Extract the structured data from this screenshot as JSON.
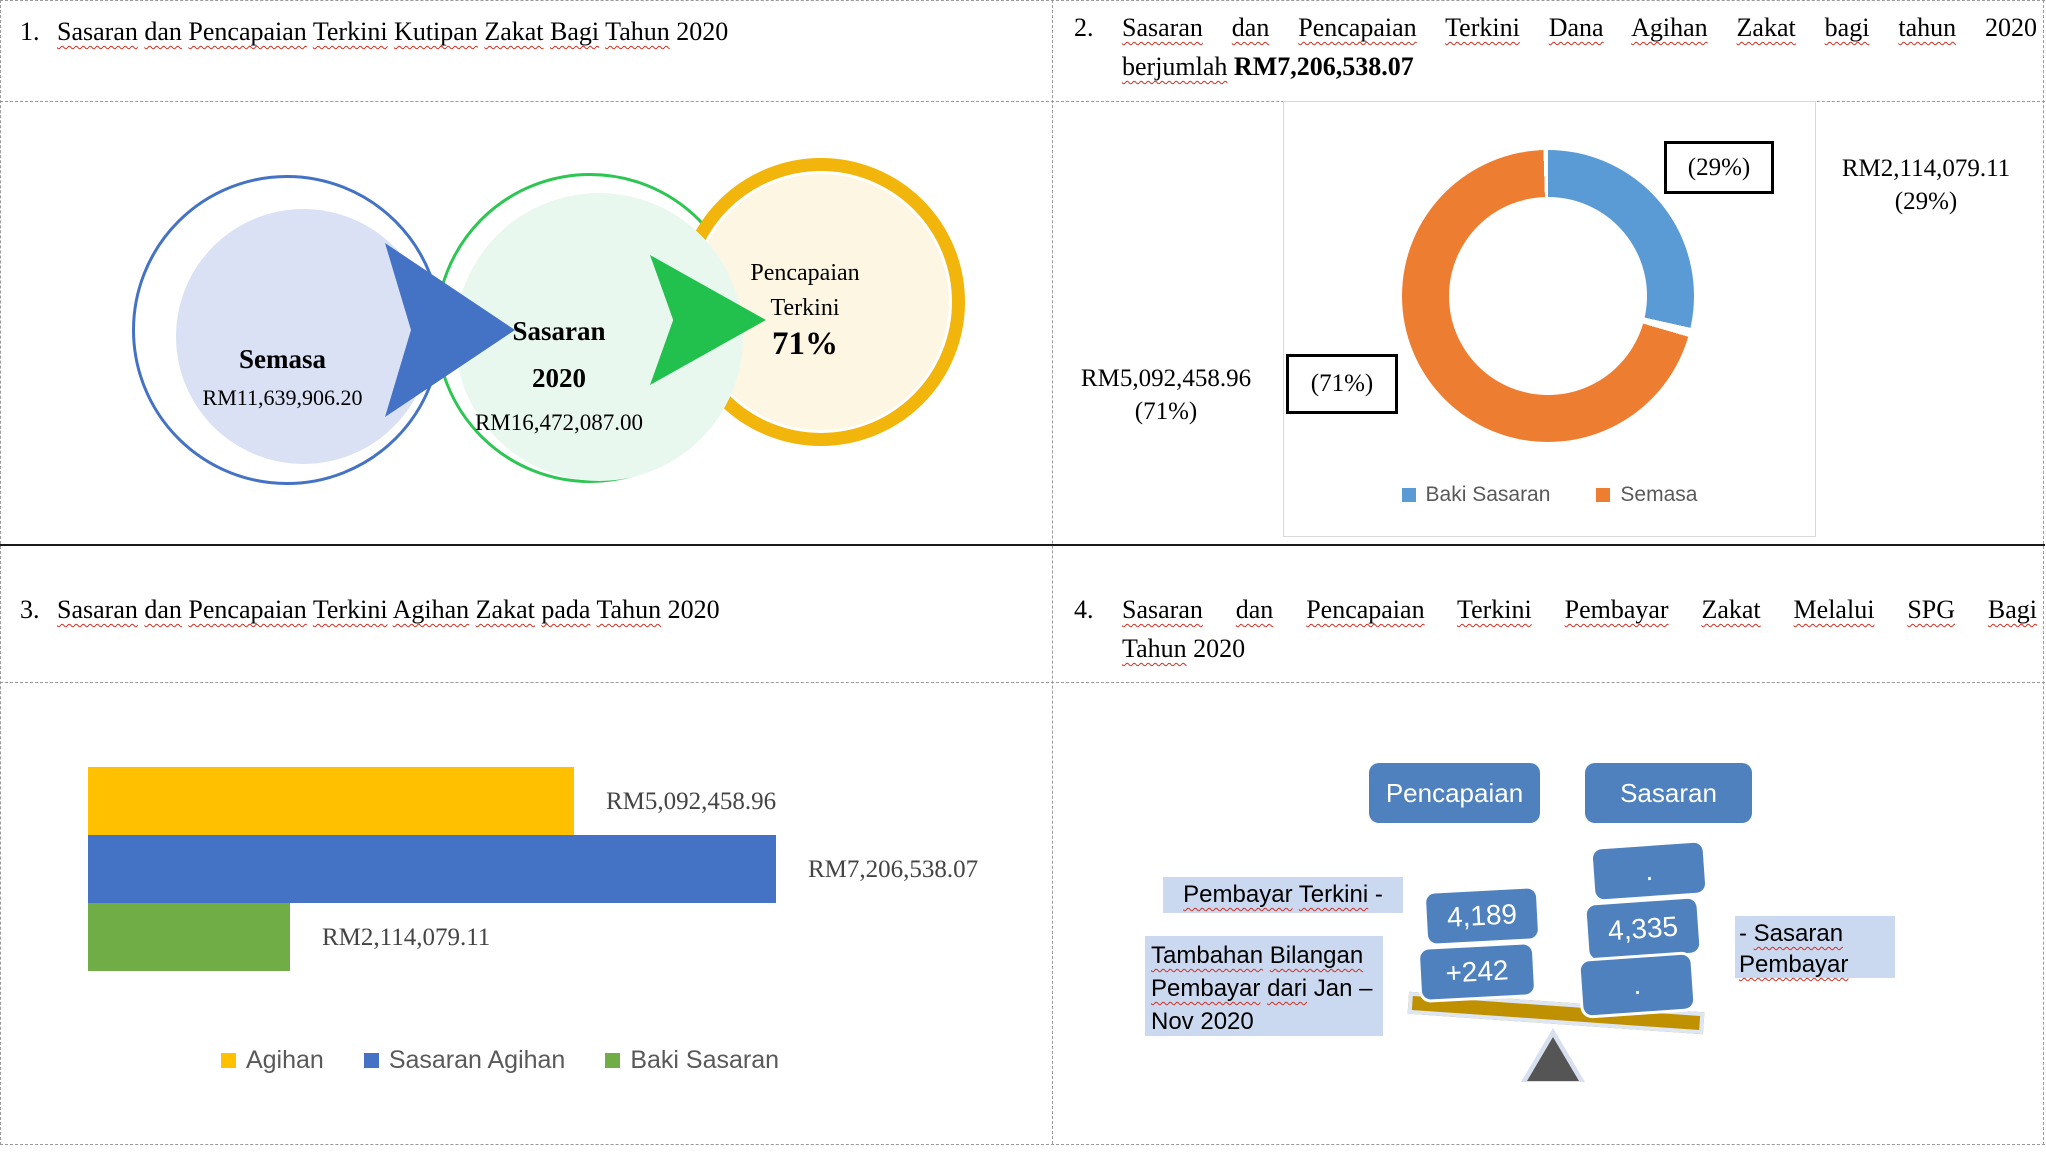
{
  "q1": {
    "number": "1.",
    "title": "Sasaran dan Pencapaian Terkini Kutipan Zakat Bagi Tahun 2020"
  },
  "q2": {
    "number": "2.",
    "title_line1": "Sasaran dan Pencapaian Terkini Dana Agihan Zakat bagi tahun 2020",
    "line2_pre": "berjumlah",
    "line2_bold": "RM7,206,538.07"
  },
  "q3": {
    "number": "3.",
    "title": "Sasaran dan Pencapaian Terkini Agihan Zakat pada Tahun 2020"
  },
  "q4": {
    "number": "4.",
    "title_line1": "Sasaran dan Pencapaian Terkini Pembayar Zakat Melalui SPG Bagi",
    "title_line2": "Tahun 2020"
  },
  "chart_data": [
    {
      "type": "process-circles",
      "title": "Sasaran dan Pencapaian Terkini Kutipan Zakat Bagi Tahun 2020",
      "steps": [
        {
          "title": "Semasa",
          "subtitle": "",
          "value": "RM11,639,906.20",
          "outline": "#4472c4",
          "fill": "#dae1f5",
          "arrow": "#4472c4"
        },
        {
          "title": "Sasaran",
          "subtitle": "2020",
          "value": "RM16,472,087.00",
          "outline": "#2dc653",
          "fill": "#e9f8ee",
          "arrow": "#22c14e"
        },
        {
          "title": "Pencapaian",
          "subtitle": "Terkini",
          "value": "71%",
          "outline": "#f2b50b",
          "fill": "#fdf6e3",
          "arrow": ""
        }
      ]
    },
    {
      "type": "pie",
      "donut": true,
      "title": "Sasaran dan Pencapaian Terkini Dana Agihan Zakat bagi tahun 2020 berjumlah RM7,206,538.07",
      "total_text": "RM7,206,538.07",
      "slices": [
        {
          "name": "Baki Sasaran",
          "value": 2114079.11,
          "pct": 29,
          "value_text": "RM2,114,079.11",
          "pct_text": "(29%)",
          "color": "#5b9bd5"
        },
        {
          "name": "Semasa",
          "value": 5092458.96,
          "pct": 71,
          "value_text": "RM5,092,458.96",
          "pct_text": "(71%)",
          "color": "#ed7d31"
        }
      ],
      "legend_position": "bottom",
      "start_angle_deg": 0
    },
    {
      "type": "bar",
      "orientation": "horizontal",
      "title": "Sasaran dan Pencapaian Terkini Agihan Zakat pada Tahun 2020",
      "categories": [
        "Agihan",
        "Sasaran Agihan",
        "Baki Sasaran"
      ],
      "values": [
        5092458.96,
        7206538.07,
        2114079.11
      ],
      "labels": [
        "RM5,092,458.96",
        "RM7,206,538.07",
        "RM2,114,079.11"
      ],
      "colors": [
        "#ffc000",
        "#4472c4",
        "#70ad47"
      ],
      "legend_position": "bottom",
      "axis": "hidden"
    },
    {
      "type": "balance",
      "title": "Sasaran dan Pencapaian Terkini Pembayar Zakat Melalui SPG Bagi Tahun 2020",
      "left_header": "Pencapaian",
      "right_header": "Sasaran",
      "left_values": [
        "4,189",
        "+242"
      ],
      "right_values": [
        ".",
        "4,335",
        "."
      ],
      "left_label": "Pembayar Terkini  -",
      "left_sub_label": "Tambahan Bilangan Pembayar dari Jan – Nov 2020",
      "right_label": "- Sasaran Pembayar",
      "tilt": "right-down"
    }
  ]
}
